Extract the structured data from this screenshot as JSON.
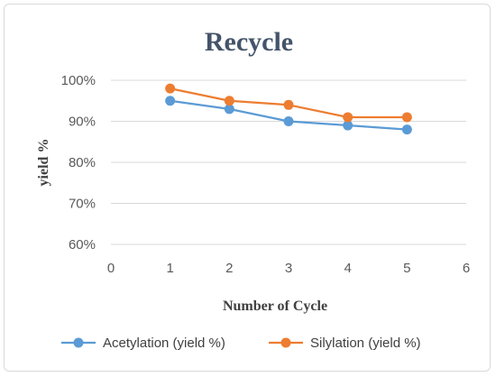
{
  "chart_data": {
    "type": "line",
    "title": "Recycle",
    "xlabel": "Number of Cycle",
    "ylabel": "yield %",
    "x": [
      1,
      2,
      3,
      4,
      5
    ],
    "xlim": [
      0,
      6
    ],
    "xticks": [
      "0",
      "1",
      "2",
      "3",
      "4",
      "5",
      "6"
    ],
    "ylim": [
      60,
      100
    ],
    "yticks": [
      "60%",
      "70%",
      "80%",
      "90%",
      "100%"
    ],
    "grid": "horizontal",
    "legend_position": "bottom",
    "series": [
      {
        "name": "Acetylation (yield %)",
        "color": "#5b9bd5",
        "values": [
          95,
          93,
          90,
          89,
          88
        ]
      },
      {
        "name": "Silylation (yield %)",
        "color": "#ed7d31",
        "values": [
          98,
          95,
          94,
          91,
          91
        ]
      }
    ]
  }
}
